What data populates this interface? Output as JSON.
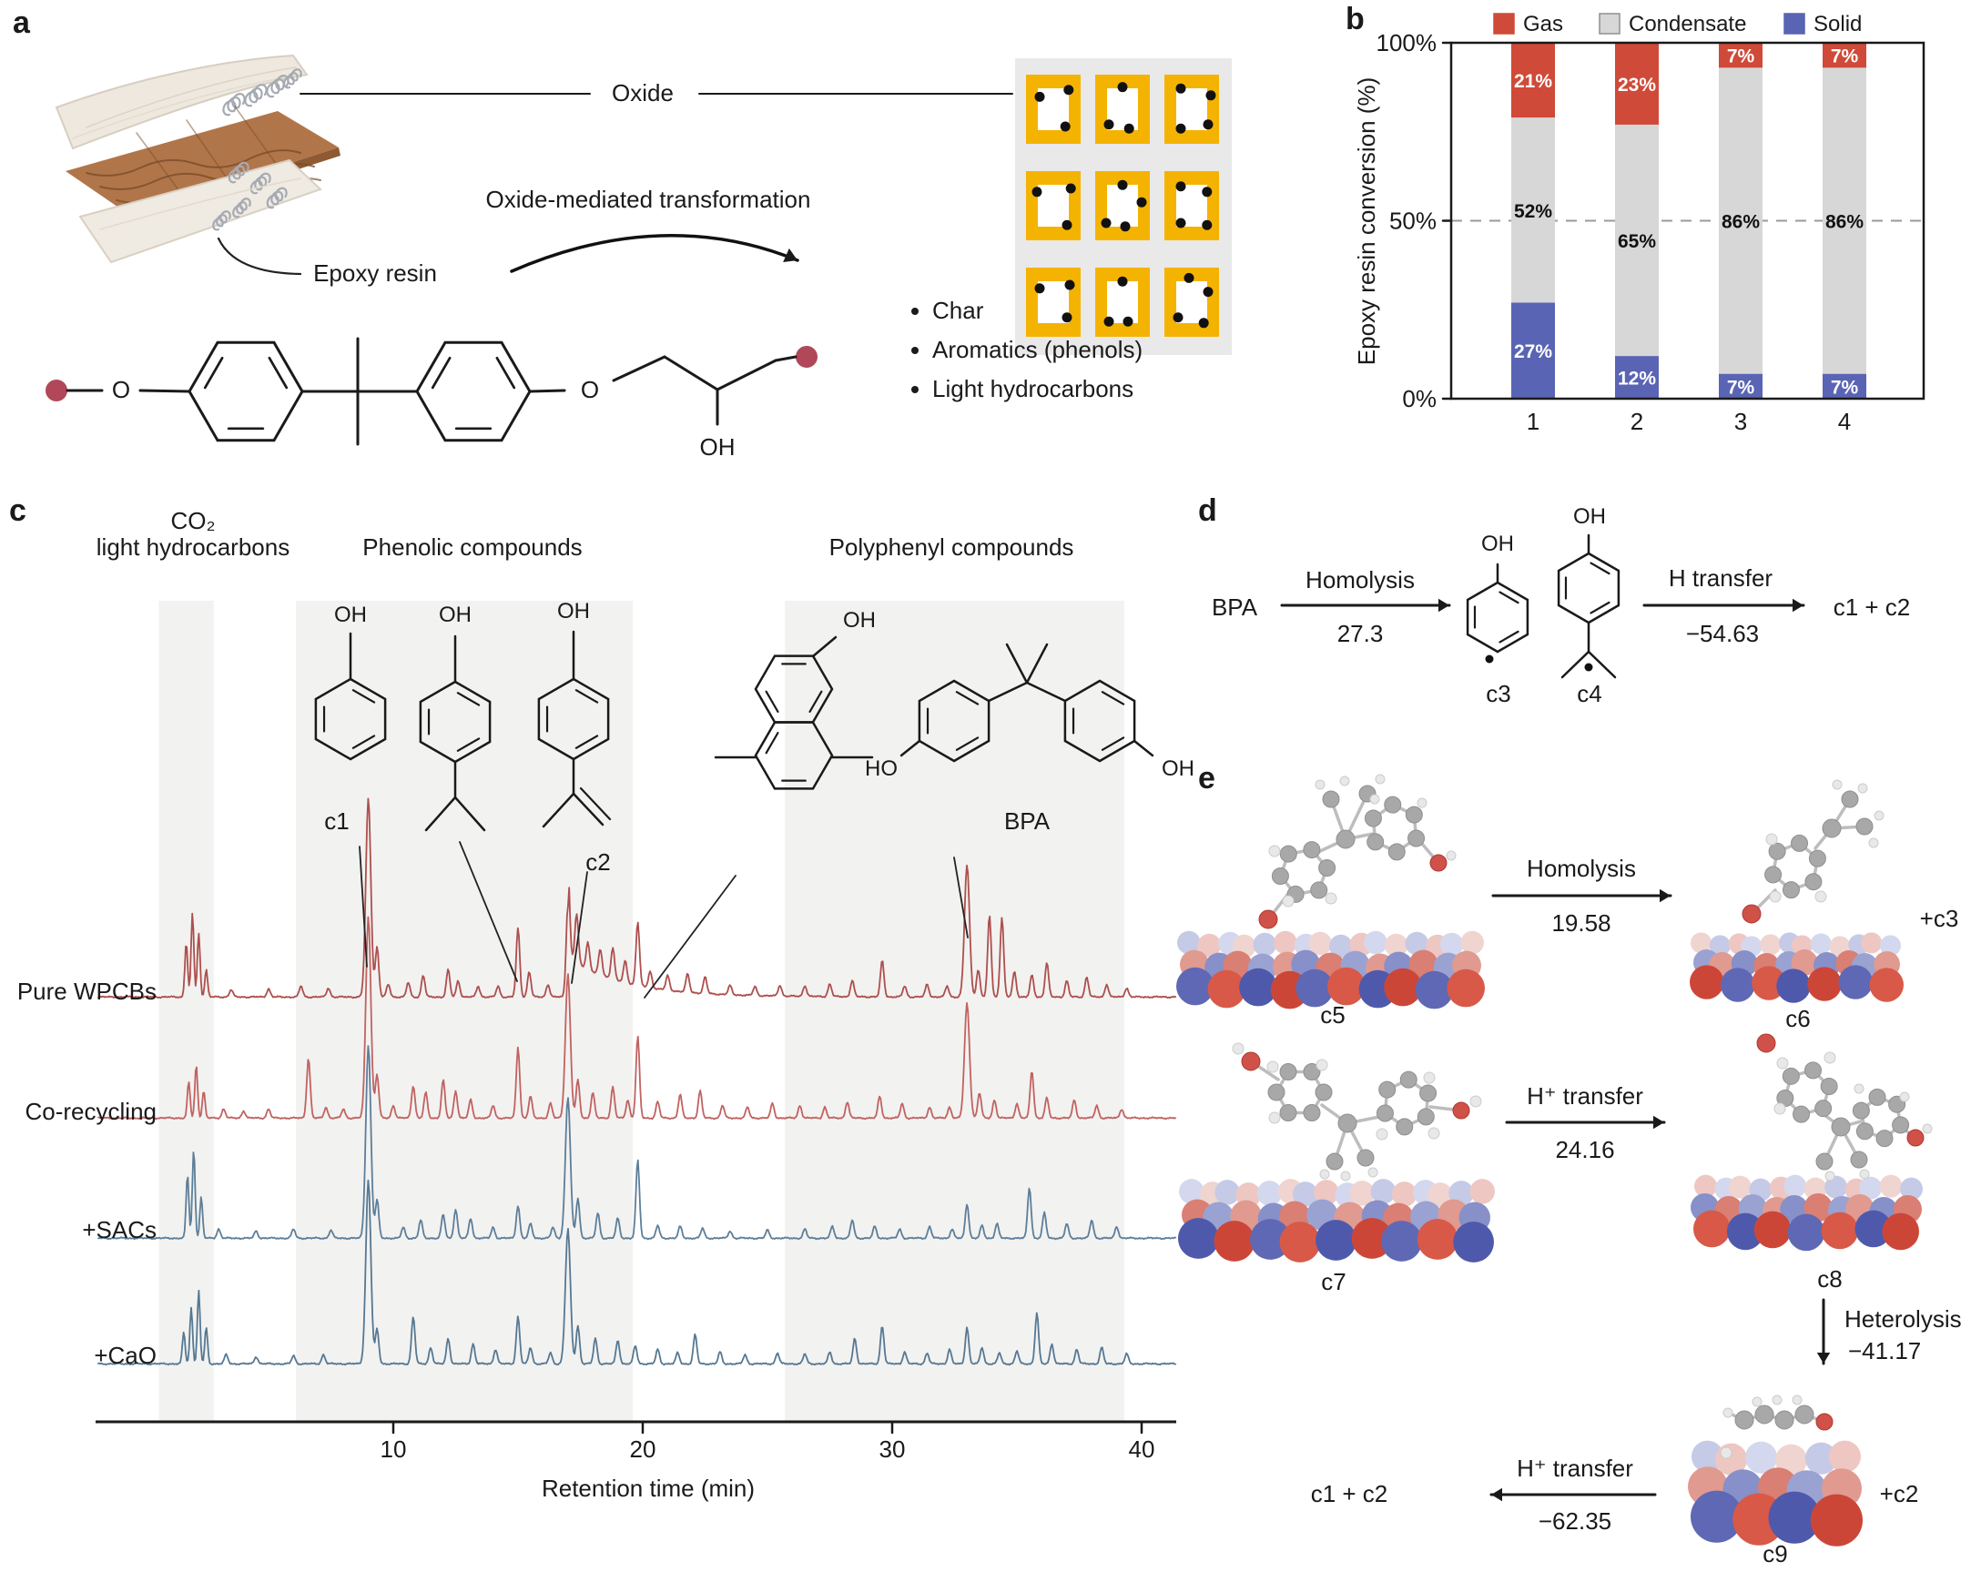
{
  "figure": {
    "panel_labels": {
      "a": "a",
      "b": "b",
      "c": "c",
      "d": "d",
      "e": "e"
    }
  },
  "chem": {
    "o": "O",
    "oh": "OH",
    "ho": "HO"
  },
  "panel_a": {
    "oxide_label": "Oxide",
    "transformation_label": "Oxide-mediated transformation",
    "epoxy_resin_label": "Epoxy resin",
    "products": [
      "Char",
      "Aromatics (phenols)",
      "Light hydrocarbons"
    ]
  },
  "chart_data": [
    {
      "id": "epoxy_conversion",
      "type": "bar",
      "stacked": true,
      "categories": [
        "1",
        "2",
        "3",
        "4"
      ],
      "series": [
        {
          "name": "Solid",
          "color": "#5a64b4",
          "values": [
            27,
            12,
            7,
            7
          ]
        },
        {
          "name": "Condensate",
          "color": "#d7d7d7",
          "values": [
            52,
            65,
            86,
            86
          ]
        },
        {
          "name": "Gas",
          "color": "#cf4a38",
          "values": [
            21,
            23,
            7,
            7
          ]
        }
      ],
      "legend": [
        "Gas",
        "Condensate",
        "Solid"
      ],
      "ylabel": "Epoxy resin conversion (%)",
      "yticks": [
        {
          "value": 0,
          "label": "0%"
        },
        {
          "value": 50,
          "label": "50%"
        },
        {
          "value": 100,
          "label": "100%"
        }
      ],
      "ylim": [
        0,
        100
      ],
      "reference_line": 50,
      "value_label_colors": {
        "Solid": "#ffffff",
        "Condensate": "#111111",
        "Gas": "#ffffff"
      }
    },
    {
      "id": "gcms_chromatograms",
      "type": "line",
      "xlabel": "Retention time (min)",
      "xticks": [
        10,
        20,
        30,
        40
      ],
      "xlim": [
        -1.8,
        41.5
      ],
      "regions": [
        {
          "label_line1": "CO₂",
          "label_line2": "light hydrocarbons",
          "from": 0.6,
          "to": 2.8
        },
        {
          "label": "Phenolic compounds",
          "from": 6.1,
          "to": 19.6
        },
        {
          "label": "Polyphenyl compounds",
          "from": 25.7,
          "to": 39.3
        }
      ],
      "annotations": [
        {
          "label": "c1",
          "t": 9
        },
        {
          "label": "c2",
          "t": 17
        },
        {
          "label": "BPA",
          "t": 33
        }
      ],
      "series": [
        {
          "name": "Pure WPCBs",
          "color": "#ad4f4d",
          "tail": {
            "t": 17.05,
            "h": 42,
            "decay": 2.3
          },
          "peaks": [
            [
              1.7,
              60
            ],
            [
              1.95,
              92
            ],
            [
              2.2,
              70
            ],
            [
              2.5,
              30
            ],
            [
              3.5,
              8
            ],
            [
              5,
              9
            ],
            [
              6.3,
              12
            ],
            [
              7.4,
              10
            ],
            [
              9,
              218
            ],
            [
              9.35,
              55
            ],
            [
              9.8,
              14
            ],
            [
              10.6,
              16
            ],
            [
              11.2,
              24
            ],
            [
              12.2,
              30
            ],
            [
              12.6,
              18
            ],
            [
              13.4,
              12
            ],
            [
              14.2,
              12
            ],
            [
              15,
              76
            ],
            [
              15.45,
              28
            ],
            [
              16.2,
              14
            ],
            [
              17,
              102
            ],
            [
              17.35,
              55
            ],
            [
              17.8,
              30
            ],
            [
              18.3,
              28
            ],
            [
              18.8,
              35
            ],
            [
              19.3,
              24
            ],
            [
              19.8,
              70
            ],
            [
              20.3,
              18
            ],
            [
              21,
              16
            ],
            [
              21.8,
              20
            ],
            [
              22.5,
              18
            ],
            [
              23.5,
              10
            ],
            [
              24.5,
              10
            ],
            [
              25.5,
              12
            ],
            [
              26.5,
              12
            ],
            [
              27.5,
              14
            ],
            [
              28.4,
              18
            ],
            [
              29.6,
              40
            ],
            [
              30.5,
              12
            ],
            [
              31.4,
              14
            ],
            [
              32.2,
              12
            ],
            [
              33,
              145
            ],
            [
              33.45,
              30
            ],
            [
              33.9,
              90
            ],
            [
              34.4,
              88
            ],
            [
              34.9,
              28
            ],
            [
              35.6,
              24
            ],
            [
              36.2,
              38
            ],
            [
              37,
              18
            ],
            [
              37.8,
              22
            ],
            [
              38.6,
              14
            ],
            [
              39.4,
              10
            ]
          ]
        },
        {
          "name": "Co-recycling",
          "color": "#c06361",
          "peaks": [
            [
              1.8,
              40
            ],
            [
              2.1,
              58
            ],
            [
              2.4,
              30
            ],
            [
              3.2,
              10
            ],
            [
              4,
              8
            ],
            [
              5,
              10
            ],
            [
              6.6,
              66
            ],
            [
              7.3,
              12
            ],
            [
              8,
              10
            ],
            [
              9,
              222
            ],
            [
              9.35,
              48
            ],
            [
              10,
              14
            ],
            [
              10.8,
              36
            ],
            [
              11.3,
              28
            ],
            [
              12,
              42
            ],
            [
              12.5,
              30
            ],
            [
              13.1,
              20
            ],
            [
              14,
              14
            ],
            [
              15,
              78
            ],
            [
              15.5,
              24
            ],
            [
              16.3,
              16
            ],
            [
              17,
              158
            ],
            [
              17.4,
              42
            ],
            [
              18,
              28
            ],
            [
              18.8,
              34
            ],
            [
              19.4,
              20
            ],
            [
              19.8,
              90
            ],
            [
              20.6,
              18
            ],
            [
              21.5,
              26
            ],
            [
              22.3,
              30
            ],
            [
              23.2,
              14
            ],
            [
              24.2,
              12
            ],
            [
              25.2,
              16
            ],
            [
              26.3,
              14
            ],
            [
              27.3,
              12
            ],
            [
              28.2,
              18
            ],
            [
              29.5,
              24
            ],
            [
              30.4,
              16
            ],
            [
              31.5,
              12
            ],
            [
              32.3,
              12
            ],
            [
              33,
              126
            ],
            [
              33.5,
              28
            ],
            [
              34.1,
              20
            ],
            [
              35,
              16
            ],
            [
              35.6,
              52
            ],
            [
              36.2,
              22
            ],
            [
              37.3,
              20
            ],
            [
              38.2,
              14
            ],
            [
              39.2,
              10
            ]
          ]
        },
        {
          "name": "+SACs",
          "color": "#5d7e99",
          "peaks": [
            [
              1.75,
              70
            ],
            [
              2.0,
              98
            ],
            [
              2.3,
              45
            ],
            [
              3,
              10
            ],
            [
              4.5,
              8
            ],
            [
              6,
              10
            ],
            [
              7.5,
              9
            ],
            [
              9,
              212
            ],
            [
              9.35,
              42
            ],
            [
              10.4,
              12
            ],
            [
              11.1,
              20
            ],
            [
              12,
              26
            ],
            [
              12.5,
              32
            ],
            [
              13.1,
              22
            ],
            [
              14,
              12
            ],
            [
              15,
              36
            ],
            [
              15.5,
              16
            ],
            [
              16.4,
              12
            ],
            [
              17,
              155
            ],
            [
              17.4,
              44
            ],
            [
              18.2,
              28
            ],
            [
              19,
              22
            ],
            [
              19.8,
              86
            ],
            [
              20.6,
              14
            ],
            [
              21.5,
              13
            ],
            [
              22.4,
              11
            ],
            [
              23.5,
              8
            ],
            [
              25,
              9
            ],
            [
              26.5,
              10
            ],
            [
              27.6,
              13
            ],
            [
              28.4,
              20
            ],
            [
              29.3,
              13
            ],
            [
              30.3,
              10
            ],
            [
              31.5,
              13
            ],
            [
              32.4,
              10
            ],
            [
              33,
              38
            ],
            [
              33.6,
              14
            ],
            [
              34.2,
              16
            ],
            [
              35.5,
              56
            ],
            [
              36.1,
              28
            ],
            [
              37,
              16
            ],
            [
              38,
              20
            ],
            [
              39,
              13
            ]
          ]
        },
        {
          "name": "+CaO",
          "color": "#567892",
          "peaks": [
            [
              1.6,
              35
            ],
            [
              1.9,
              62
            ],
            [
              2.2,
              80
            ],
            [
              2.5,
              40
            ],
            [
              3.3,
              10
            ],
            [
              4.5,
              8
            ],
            [
              6,
              9
            ],
            [
              7.2,
              10
            ],
            [
              9,
              202
            ],
            [
              9.35,
              38
            ],
            [
              10.8,
              52
            ],
            [
              11.5,
              18
            ],
            [
              12.2,
              28
            ],
            [
              13.2,
              22
            ],
            [
              14.1,
              16
            ],
            [
              15,
              52
            ],
            [
              15.5,
              18
            ],
            [
              16.3,
              12
            ],
            [
              17,
              148
            ],
            [
              17.4,
              42
            ],
            [
              18.1,
              28
            ],
            [
              19,
              26
            ],
            [
              19.7,
              20
            ],
            [
              20.6,
              16
            ],
            [
              21.4,
              12
            ],
            [
              22.1,
              32
            ],
            [
              23.1,
              13
            ],
            [
              24.1,
              10
            ],
            [
              25.4,
              12
            ],
            [
              26.5,
              11
            ],
            [
              27.5,
              13
            ],
            [
              28.5,
              28
            ],
            [
              29.6,
              42
            ],
            [
              30.5,
              13
            ],
            [
              31.4,
              12
            ],
            [
              32.3,
              16
            ],
            [
              33,
              40
            ],
            [
              33.6,
              18
            ],
            [
              34.3,
              12
            ],
            [
              35,
              14
            ],
            [
              35.8,
              56
            ],
            [
              36.4,
              22
            ],
            [
              37.4,
              16
            ],
            [
              38.4,
              18
            ],
            [
              39.4,
              11
            ]
          ]
        }
      ]
    }
  ],
  "panel_c": {
    "compounds": {
      "c1": "c1",
      "c2": "c2",
      "bpa": "BPA"
    }
  },
  "panel_d": {
    "reactant": "BPA",
    "steps": [
      {
        "name": "Homolysis",
        "value": "27.3"
      },
      {
        "name": "H transfer",
        "value": "−54.63"
      }
    ],
    "intermediates": {
      "c3": "c3",
      "c4": "c4"
    },
    "product": "c1 + c2"
  },
  "panel_e": {
    "species": {
      "c5": "c5",
      "c6": "c6",
      "c7": "c7",
      "c8": "c8",
      "c9": "c9"
    },
    "coproducts": {
      "c3": "+c3",
      "c2": "+c2"
    },
    "product": "c1 + c2",
    "steps": [
      {
        "name": "Homolysis",
        "value": "19.58"
      },
      {
        "name": "H⁺ transfer",
        "value": "24.16"
      },
      {
        "name": "Heterolysis",
        "value": "−41.17"
      },
      {
        "name": "H⁺ transfer",
        "value": "−62.35"
      }
    ]
  }
}
